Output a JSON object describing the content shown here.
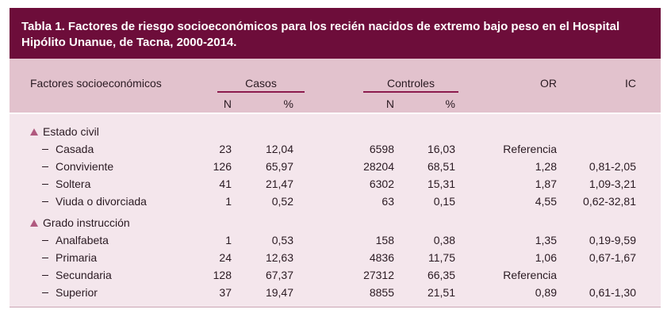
{
  "title": "Tabla 1. Factores de riesgo socioeconómicos para los recién nacidos de extremo bajo peso en el Hospital Hipólito Unanue, de Tacna, 2000-2014.",
  "headers": {
    "factores": "Factores socioeconómicos",
    "casos": "Casos",
    "controles": "Controles",
    "or": "OR",
    "ic": "IC",
    "n": "N",
    "pct": "%"
  },
  "groups": [
    {
      "label": "Estado civil",
      "rows": [
        {
          "label": "Casada",
          "casos_n": "23",
          "casos_pct": "12,04",
          "controles_n": "6598",
          "controles_pct": "16,03",
          "or": "Referencia",
          "ic": ""
        },
        {
          "label": "Conviviente",
          "casos_n": "126",
          "casos_pct": "65,97",
          "controles_n": "28204",
          "controles_pct": "68,51",
          "or": "1,28",
          "ic": "0,81-2,05"
        },
        {
          "label": "Soltera",
          "casos_n": "41",
          "casos_pct": "21,47",
          "controles_n": "6302",
          "controles_pct": "15,31",
          "or": "1,87",
          "ic": "1,09-3,21"
        },
        {
          "label": "Viuda o divorciada",
          "casos_n": "1",
          "casos_pct": "0,52",
          "controles_n": "63",
          "controles_pct": "0,15",
          "or": "4,55",
          "ic": "0,62-32,81"
        }
      ]
    },
    {
      "label": "Grado instrucción",
      "rows": [
        {
          "label": "Analfabeta",
          "casos_n": "1",
          "casos_pct": "0,53",
          "controles_n": "158",
          "controles_pct": "0,38",
          "or": "1,35",
          "ic": "0,19-9,59"
        },
        {
          "label": "Primaria",
          "casos_n": "24",
          "casos_pct": "12,63",
          "controles_n": "4836",
          "controles_pct": "11,75",
          "or": "1,06",
          "ic": "0,67-1,67"
        },
        {
          "label": "Secundaria",
          "casos_n": "128",
          "casos_pct": "67,37",
          "controles_n": "27312",
          "controles_pct": "66,35",
          "or": "Referencia",
          "ic": ""
        },
        {
          "label": "Superior",
          "casos_n": "37",
          "casos_pct": "19,47",
          "controles_n": "8855",
          "controles_pct": "21,51",
          "or": "0,89",
          "ic": "0,61-1,30"
        }
      ]
    }
  ],
  "colors": {
    "title_bg": "#6d0d3a",
    "header_bg": "#e2c2cd",
    "body_bg": "#f4e6ec",
    "accent": "#8c1a4d",
    "marker": "#b0597f"
  }
}
